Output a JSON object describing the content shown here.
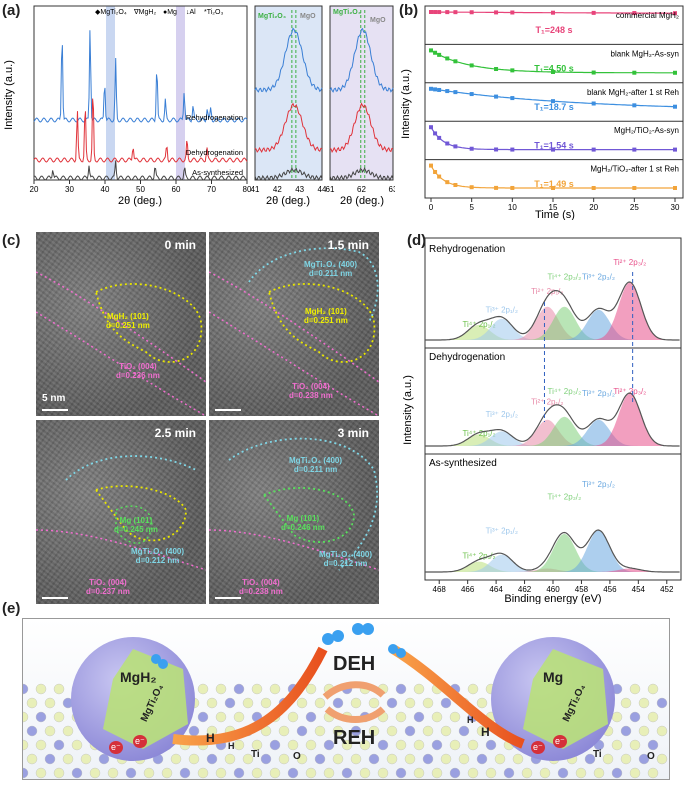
{
  "panel_labels": {
    "a": "(a)",
    "b": "(b)",
    "c": "(c)",
    "d": "(d)",
    "e": "(e)"
  },
  "a": {
    "ylabel": "Intensity (a.u.)",
    "xlabel": "2θ (deg.)",
    "legend": [
      "◆MgTi₂O₄",
      "∇MgH₂",
      "●Mg",
      "↓Al",
      "*Ti₂O₃"
    ],
    "curve_labels": [
      "Rehydrogenation",
      "Dehydrogenation",
      "As-synthesized"
    ],
    "xticks": [
      "20",
      "30",
      "40",
      "50",
      "60",
      "70",
      "80"
    ],
    "zoom1": {
      "labels": [
        "MgTi₂O₄",
        "MgO"
      ],
      "xticks": [
        "41",
        "42",
        "43",
        "44"
      ]
    },
    "zoom2": {
      "labels": [
        "MgTi₂O₄",
        "MgO"
      ],
      "xticks": [
        "61",
        "62",
        "63"
      ]
    }
  },
  "chart_data": [
    {
      "type": "line",
      "title": "",
      "xlabel": "2θ (deg.)",
      "ylabel": "Intensity (a.u.)",
      "xlim": [
        20,
        80
      ],
      "series": [
        {
          "name": "Rehydrogenation",
          "color": "#3a7fd5",
          "peaks_x": [
            27.9,
            35.8,
            39.9,
            43.0,
            54.6,
            57.0,
            62.3,
            64.8,
            68.8,
            69.8
          ]
        },
        {
          "name": "Dehydrogenation",
          "color": "#e0333a",
          "peaks_x": [
            32.2,
            34.4,
            36.6,
            47.9,
            57.4,
            63.1,
            68.7
          ]
        },
        {
          "name": "As-synthesized",
          "color": "#444444",
          "peaks_x": [
            25.3,
            35.5,
            43.0,
            54.1,
            62.4
          ]
        }
      ]
    },
    {
      "type": "line",
      "xlabel": "Time (s)",
      "ylabel": "Intensity (a.u.)",
      "xlim": [
        0,
        30
      ],
      "x": [
        0,
        0.5,
        1,
        2,
        3,
        5,
        8,
        10,
        15,
        20,
        25,
        30
      ],
      "series": [
        {
          "name": "commercial MgH₂",
          "label": "T₁=248 s",
          "color": "#e8447a"
        },
        {
          "name": "blank MgH₂-As-syn",
          "label": "T₁=4.50 s",
          "color": "#33c23a"
        },
        {
          "name": "blank MgH₂-after 1 st Reh",
          "label": "T₁=18.7 s",
          "color": "#3d8fe0"
        },
        {
          "name": "MgH₂/TiO₂-As-syn",
          "label": "T₁=1.54 s",
          "color": "#7158d6"
        },
        {
          "name": "MgH₂/TiO₂-after 1 st Reh",
          "label": "T₁=1.49 s",
          "color": "#f2a43a"
        }
      ],
      "xticks": [
        "0",
        "5",
        "10",
        "15",
        "20",
        "25",
        "30"
      ]
    },
    {
      "type": "line",
      "xlabel": "Binding energy (eV)",
      "ylabel": "Intensity (a.u.)",
      "xlim": [
        469,
        451
      ],
      "xticks": [
        "468",
        "466",
        "464",
        "462",
        "460",
        "458",
        "456",
        "454",
        "452"
      ],
      "series": [
        {
          "name": "Rehydrogenation"
        },
        {
          "name": "Dehydrogenation"
        },
        {
          "name": "As-synthesized"
        }
      ]
    }
  ],
  "b": {
    "names": [
      "commercial MgH₂",
      "blank MgH₂-As-syn",
      "blank MgH₂-after 1 st Reh",
      "MgH₂/TiO₂-As-syn",
      "MgH₂/TiO₂-after 1 st Reh"
    ],
    "t1": [
      "T₁=248 s",
      "T₁=4.50 s",
      "T₁=18.7 s",
      "T₁=1.54 s",
      "T₁=1.49 s"
    ],
    "xlabel": "Time (s)",
    "ylabel": "Intensity (a.u.)"
  },
  "c": {
    "times": [
      "0 min",
      "1.5 min",
      "2.5 min",
      "3 min"
    ],
    "scale": "5 nm",
    "ann": {
      "mgh2": "MgH₂ (101)\nd=0.251 nm",
      "tio2": "TiO₂ (004)\nd=0.236 nm",
      "tio2b": "TiO₂ (004)\nd=0.238 nm",
      "mgti400": "MgTi₂O₄ (400)\nd=0.211 nm",
      "mg101": "Mg (101)\nd=0.245 nm",
      "mgti400b": "MgTi₂O₄ (400)\nd=0.212 nm",
      "tio2c": "TiO₂ (004)\nd=0.237 nm",
      "mg101b": "Mg (101)\nd=0.246 nm"
    }
  },
  "d": {
    "sections": [
      "Rehydrogenation",
      "Dehydrogenation",
      "As-synthesized"
    ],
    "peaks": [
      "Ti⁴⁺ 2p₁/₂",
      "Ti³⁺ 2p₁/₂",
      "Ti²⁺ 2p₁/₂",
      "Ti⁴⁺ 2p₃/₂",
      "Ti³⁺ 2p₃/₂",
      "Ti²⁺ 2p₃/₂"
    ],
    "xlabel": "Binding energy (eV)",
    "ylabel": "Intensity (a.u.)"
  },
  "e": {
    "left": "MgH₂",
    "right": "Mg",
    "deh": "DEH",
    "reh": "REH",
    "mgti": "MgTi₂O₄",
    "h": "H",
    "e": "e⁻",
    "ti": "Ti",
    "o": "O"
  }
}
